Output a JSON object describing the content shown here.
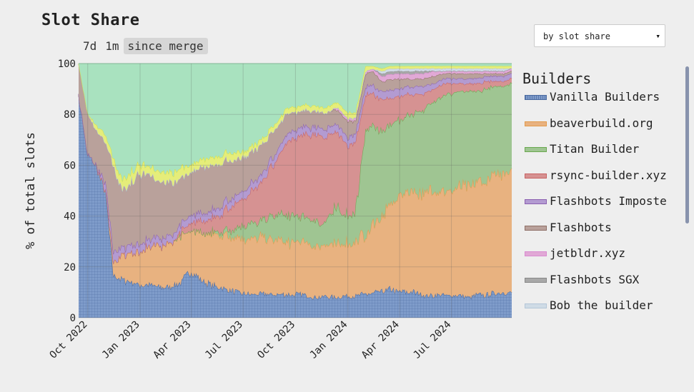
{
  "header": {
    "title": "Slot Share",
    "ranges": [
      "7d",
      "1m",
      "since merge"
    ],
    "active_range": "since merge",
    "sort_select_value": "by slot share",
    "sort_caret": "▾"
  },
  "chart_data": {
    "type": "area",
    "stacked": true,
    "title": "Slot Share",
    "ylabel": "% of total slots",
    "xlabel": "",
    "ylim": [
      0,
      100
    ],
    "yticks": [
      0,
      20,
      40,
      60,
      80,
      100
    ],
    "xlim": [
      "2022-09-15",
      "2024-10-15"
    ],
    "xticks": [
      {
        "date": "2022-10-01",
        "label": "Oct 2022"
      },
      {
        "date": "2023-01-01",
        "label": "Jan 2023"
      },
      {
        "date": "2023-04-01",
        "label": "Apr 2023"
      },
      {
        "date": "2023-07-01",
        "label": "Jul 2023"
      },
      {
        "date": "2023-10-01",
        "label": "Oct 2023"
      },
      {
        "date": "2024-01-01",
        "label": "Jan 2024"
      },
      {
        "date": "2024-04-01",
        "label": "Apr 2024"
      },
      {
        "date": "2024-07-01",
        "label": "Jul 2024"
      }
    ],
    "grid": true,
    "legend_title": "Builders",
    "legend_position": "right",
    "dates": [
      "2022-09-15",
      "2022-10-01",
      "2022-10-15",
      "2022-11-01",
      "2022-11-15",
      "2022-12-01",
      "2022-12-15",
      "2023-01-01",
      "2023-01-15",
      "2023-02-01",
      "2023-02-15",
      "2023-03-01",
      "2023-03-15",
      "2023-04-01",
      "2023-04-15",
      "2023-05-01",
      "2023-05-15",
      "2023-06-01",
      "2023-06-15",
      "2023-07-01",
      "2023-07-15",
      "2023-08-01",
      "2023-08-15",
      "2023-09-01",
      "2023-09-15",
      "2023-10-01",
      "2023-10-15",
      "2023-11-01",
      "2023-11-15",
      "2023-12-01",
      "2023-12-15",
      "2024-01-01",
      "2024-01-15",
      "2024-02-01",
      "2024-02-15",
      "2024-03-01",
      "2024-03-15",
      "2024-04-01",
      "2024-04-15",
      "2024-05-01",
      "2024-05-15",
      "2024-06-01",
      "2024-06-15",
      "2024-07-01",
      "2024-07-15",
      "2024-08-01",
      "2024-08-15",
      "2024-09-01",
      "2024-09-15",
      "2024-10-01",
      "2024-10-15"
    ],
    "series": [
      {
        "name": "Vanilla Builders",
        "color": "#6f8fc4",
        "pattern": "grid",
        "values": [
          88,
          64,
          60,
          50,
          17,
          15,
          14,
          13,
          13,
          12,
          12,
          13,
          14,
          19,
          15,
          13,
          12,
          11,
          10,
          9,
          9,
          9,
          9,
          9,
          9,
          9,
          9,
          8,
          8,
          8,
          8,
          8,
          8,
          9,
          9,
          10,
          11,
          10,
          10,
          10,
          9,
          9,
          9,
          9,
          9,
          8,
          9,
          9,
          10,
          10,
          10
        ]
      },
      {
        "name": "beaverbuild.org",
        "color": "#e8b280",
        "edge": "#e39a4a",
        "values": [
          0,
          0,
          0,
          0,
          5,
          10,
          12,
          13,
          15,
          16,
          16,
          17,
          18,
          16,
          18,
          19,
          20,
          21,
          21,
          21,
          21,
          21,
          21,
          21,
          20,
          20,
          20,
          20,
          20,
          20,
          20,
          20,
          20,
          22,
          26,
          28,
          32,
          37,
          39,
          40,
          41,
          42,
          42,
          42,
          43,
          43,
          44,
          45,
          47,
          48,
          50
        ]
      },
      {
        "name": "Titan Builder",
        "color": "#9fc592",
        "edge": "#6aa84f",
        "values": [
          0,
          0,
          0,
          0,
          0,
          0,
          0,
          0,
          0,
          0,
          0,
          0,
          0,
          0,
          0,
          0,
          1,
          2,
          3,
          5,
          6,
          6,
          8,
          10,
          10,
          10,
          10,
          10,
          8,
          12,
          13,
          10,
          12,
          40,
          37,
          33,
          30,
          29,
          30,
          32,
          33,
          36,
          38,
          38,
          37,
          37,
          36,
          37,
          35,
          34,
          34
        ]
      },
      {
        "name": "rsync-builder.xyz",
        "color": "#d69292",
        "edge": "#c86262",
        "values": [
          0,
          0,
          0,
          0,
          0,
          0,
          0,
          0,
          0,
          0,
          0,
          0,
          2,
          3,
          4,
          5,
          6,
          8,
          9,
          10,
          12,
          14,
          18,
          22,
          28,
          30,
          32,
          33,
          33,
          30,
          28,
          25,
          25,
          14,
          12,
          12,
          10,
          9,
          8,
          7,
          6,
          5,
          5,
          4,
          3,
          3,
          3,
          3,
          2,
          2,
          2
        ]
      },
      {
        "name": "Flashbots Imposte",
        "color": "#b39bd1",
        "edge": "#8b5fb0",
        "values": [
          0,
          0,
          0,
          3,
          4,
          3,
          3,
          3,
          3,
          3,
          3,
          3,
          3,
          3,
          3,
          3,
          3,
          3,
          3,
          3,
          3,
          3,
          3,
          3,
          3,
          3,
          3,
          3,
          3,
          3,
          3,
          3,
          3,
          3,
          3,
          3,
          3,
          3,
          3,
          3,
          3,
          2,
          2,
          2,
          2,
          2,
          2,
          2,
          2,
          2,
          2
        ]
      },
      {
        "name": "Flashbots",
        "color": "#b9a19b",
        "edge": "#8e6f66",
        "values": [
          12,
          16,
          14,
          16,
          33,
          22,
          25,
          27,
          26,
          23,
          22,
          20,
          18,
          16,
          17,
          18,
          16,
          15,
          14,
          13,
          12,
          12,
          10,
          9,
          8,
          7,
          6,
          6,
          6,
          6,
          6,
          6,
          5,
          5,
          5,
          4,
          4,
          4,
          3,
          3,
          3,
          3,
          2,
          2,
          2,
          2,
          2,
          1,
          1,
          1,
          1
        ]
      },
      {
        "name": "jetbldr.xyz",
        "color": "#e1a9d6",
        "edge": "#d98ad0",
        "values": [
          0,
          0,
          0,
          0,
          0,
          0,
          0,
          0,
          0,
          0,
          0,
          0,
          0,
          0,
          0,
          0,
          0,
          0,
          0,
          0,
          0,
          0,
          0,
          0,
          0,
          0,
          0,
          0,
          0,
          0,
          1,
          1,
          1,
          1,
          1,
          2,
          2,
          2,
          2,
          2,
          2,
          2,
          1,
          1,
          1,
          1,
          1,
          1,
          1,
          1,
          1
        ]
      },
      {
        "name": "Flashbots SGX",
        "color": "#a8a8a8",
        "edge": "#888888",
        "values": [
          0,
          0,
          0,
          0,
          0,
          0,
          0,
          0,
          0,
          0,
          0,
          0,
          0,
          0,
          0,
          0,
          0,
          0,
          0,
          0,
          0,
          0,
          0,
          0,
          0,
          0,
          0,
          0,
          0,
          0,
          0,
          0,
          0,
          0,
          0,
          1,
          1,
          1,
          1,
          1,
          1,
          0,
          0,
          0,
          0,
          0,
          0,
          0,
          0,
          0,
          0
        ]
      },
      {
        "name": "Bob the builder",
        "color": "#cfdbe6",
        "edge": "#b4c6d8",
        "values": [
          0,
          0,
          0,
          0,
          0,
          0,
          0,
          0,
          0,
          0,
          0,
          0,
          0,
          0,
          0,
          0,
          0,
          0,
          0,
          0,
          0,
          0,
          0,
          0,
          0,
          0,
          0,
          0,
          0,
          0,
          0,
          0,
          0,
          0,
          0,
          1,
          1,
          1,
          1,
          1,
          1,
          1,
          1,
          1,
          1,
          1,
          1,
          1,
          1,
          1,
          0
        ]
      },
      {
        "name": "(other, yellow)",
        "legend_visible": false,
        "color": "#e5ed7a",
        "edge": "#d8e042",
        "values": [
          0,
          0,
          2,
          3,
          3,
          4,
          4,
          4,
          3,
          4,
          4,
          4,
          4,
          3,
          3,
          3,
          3,
          3,
          3,
          2,
          2,
          2,
          2,
          2,
          2,
          2,
          2,
          2,
          2,
          2,
          2,
          2,
          2,
          2,
          1,
          1,
          1,
          1,
          1,
          1,
          1,
          1,
          1,
          1,
          1,
          1,
          1,
          1,
          1,
          1,
          1
        ]
      },
      {
        "name": "(other, green)",
        "legend_visible": false,
        "color": "#a9e2bf",
        "edge": "#8fd3a9",
        "values": [
          0,
          20,
          24,
          28,
          38,
          46,
          42,
          40,
          40,
          42,
          43,
          43,
          41,
          40,
          37,
          36,
          36,
          34,
          34,
          33,
          32,
          29,
          26,
          22,
          17,
          17,
          16,
          16,
          17,
          16,
          15,
          18,
          18,
          1,
          1,
          2,
          1,
          1,
          1,
          1,
          1,
          1,
          1,
          1,
          1,
          1,
          1,
          1,
          1,
          1,
          1
        ]
      }
    ]
  }
}
